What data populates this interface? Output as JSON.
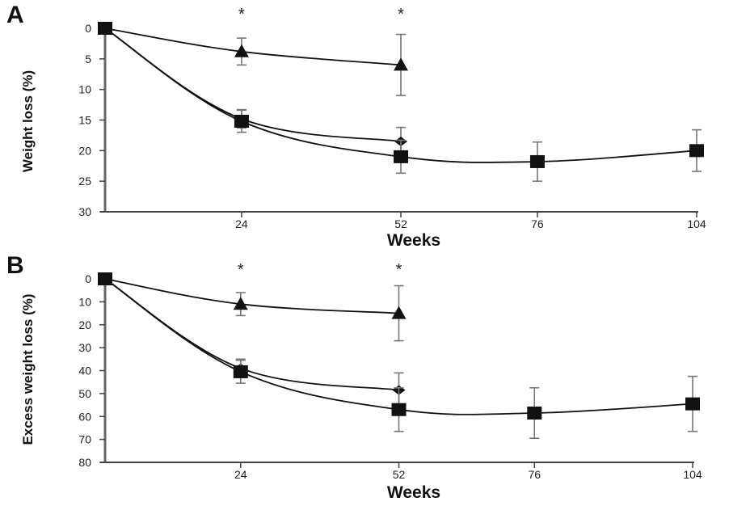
{
  "chart_data": [
    {
      "type": "line",
      "panel": "A",
      "title": "",
      "xlabel": "Weeks",
      "ylabel": "Weight loss (%)",
      "ylim": [
        0,
        30
      ],
      "y_inverted": true,
      "xlim": [
        0,
        104
      ],
      "xticks": [
        24,
        52,
        76,
        104
      ],
      "yticks": [
        0,
        5,
        10,
        15,
        20,
        25,
        30
      ],
      "grid": false,
      "legend": "none",
      "annotations": [
        {
          "text": "*",
          "x": 24
        },
        {
          "text": "*",
          "x": 52
        }
      ],
      "series": [
        {
          "marker": "triangle",
          "x": [
            0,
            24,
            52
          ],
          "y": [
            0,
            3.8,
            6.0
          ],
          "err": [
            0,
            2.2,
            5.0
          ]
        },
        {
          "marker": "diamond",
          "x": [
            0,
            24,
            52
          ],
          "y": [
            0,
            14.8,
            18.5
          ],
          "err": [
            0,
            1.5,
            2.3
          ]
        },
        {
          "marker": "square",
          "x": [
            0,
            24,
            52,
            76,
            104
          ],
          "y": [
            0,
            15.2,
            21.0,
            21.8,
            20.0
          ],
          "err": [
            0,
            1.8,
            2.7,
            3.2,
            3.4
          ]
        }
      ]
    },
    {
      "type": "line",
      "panel": "B",
      "title": "",
      "xlabel": "Weeks",
      "ylabel": "Excess weight loss (%)",
      "ylim": [
        0,
        80
      ],
      "y_inverted": true,
      "xlim": [
        0,
        104
      ],
      "xticks": [
        24,
        52,
        76,
        104
      ],
      "yticks": [
        0,
        10,
        20,
        30,
        40,
        50,
        60,
        70,
        80
      ],
      "grid": false,
      "legend": "none",
      "annotations": [
        {
          "text": "*",
          "x": 24
        },
        {
          "text": "*",
          "x": 52
        }
      ],
      "series": [
        {
          "marker": "triangle",
          "x": [
            0,
            24,
            52
          ],
          "y": [
            0,
            11,
            15
          ],
          "err": [
            0,
            5,
            12
          ]
        },
        {
          "marker": "diamond",
          "x": [
            0,
            24,
            52
          ],
          "y": [
            0,
            39,
            48.5
          ],
          "err": [
            0,
            4,
            7.5
          ]
        },
        {
          "marker": "square",
          "x": [
            0,
            24,
            52,
            76,
            104
          ],
          "y": [
            0,
            40.5,
            57,
            58.5,
            54.5
          ],
          "err": [
            0,
            5,
            9.5,
            11,
            12
          ]
        }
      ]
    }
  ]
}
